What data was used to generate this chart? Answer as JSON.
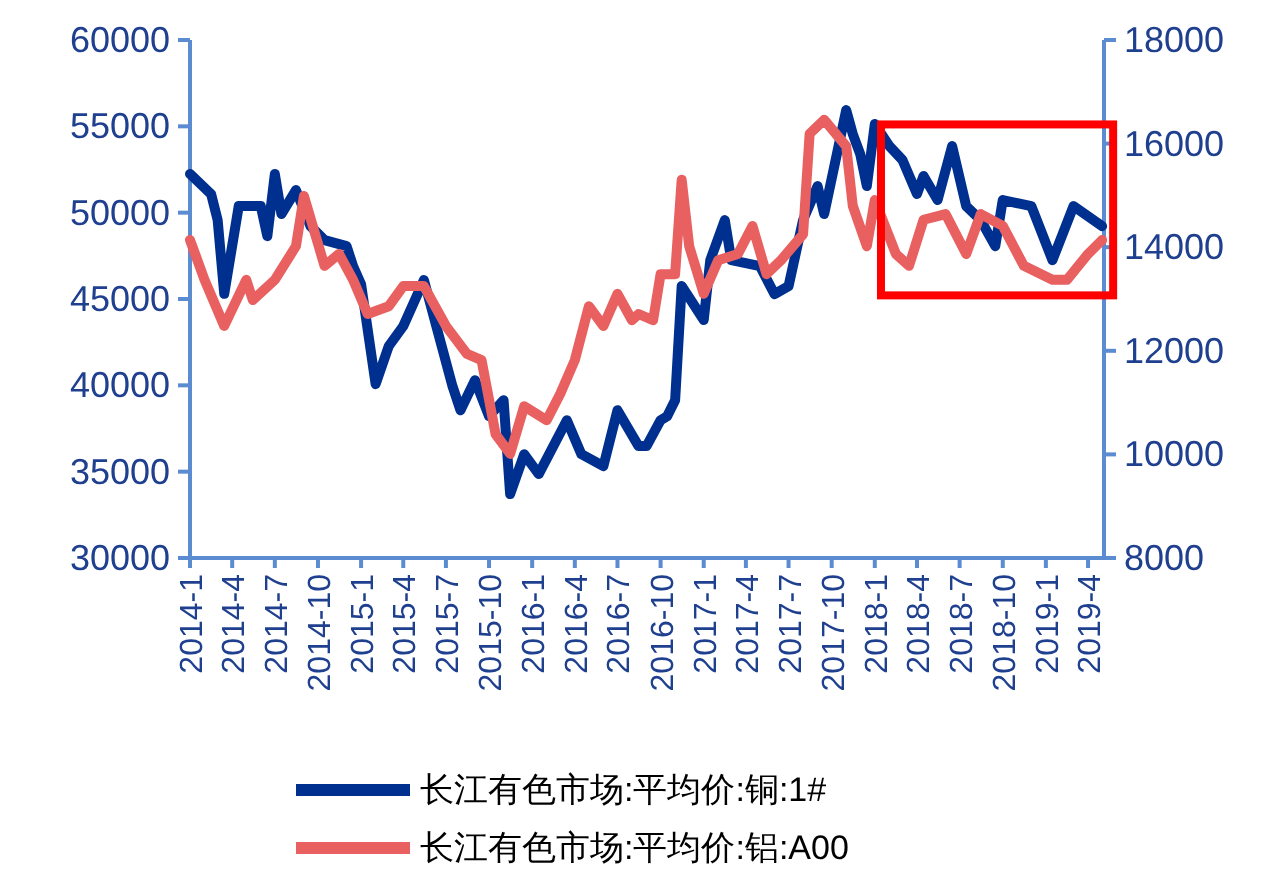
{
  "chart_data": {
    "type": "line",
    "legend": "bottom",
    "grid": false,
    "xlim": [
      "2014-01-01",
      "2019-05-05"
    ],
    "ylim": [
      30000,
      60000
    ],
    "y2lim": [
      8000,
      18000
    ],
    "yticks": [
      30000,
      35000,
      40000,
      45000,
      50000,
      55000,
      60000
    ],
    "y2ticks": [
      8000,
      10000,
      12000,
      14000,
      16000,
      18000
    ],
    "xticks": [
      {
        "value": "2014-01-01",
        "label": "2014-1"
      },
      {
        "value": "2014-04-01",
        "label": "2014-4"
      },
      {
        "value": "2014-07-01",
        "label": "2014-7"
      },
      {
        "value": "2014-10-01",
        "label": "2014-10"
      },
      {
        "value": "2015-01-01",
        "label": "2015-1"
      },
      {
        "value": "2015-04-01",
        "label": "2015-4"
      },
      {
        "value": "2015-07-01",
        "label": "2015-7"
      },
      {
        "value": "2015-10-01",
        "label": "2015-10"
      },
      {
        "value": "2016-01-01",
        "label": "2016-1"
      },
      {
        "value": "2016-04-01",
        "label": "2016-4"
      },
      {
        "value": "2016-07-01",
        "label": "2016-7"
      },
      {
        "value": "2016-10-01",
        "label": "2016-10"
      },
      {
        "value": "2017-01-01",
        "label": "2017-1"
      },
      {
        "value": "2017-04-01",
        "label": "2017-4"
      },
      {
        "value": "2017-07-01",
        "label": "2017-7"
      },
      {
        "value": "2017-10-01",
        "label": "2017-10"
      },
      {
        "value": "2018-01-01",
        "label": "2018-1"
      },
      {
        "value": "2018-04-01",
        "label": "2018-4"
      },
      {
        "value": "2018-07-01",
        "label": "2018-7"
      },
      {
        "value": "2018-10-01",
        "label": "2018-10"
      },
      {
        "value": "2019-01-01",
        "label": "2019-1"
      },
      {
        "value": "2019-04-01",
        "label": "2019-4"
      }
    ],
    "series": [
      {
        "name": "长江有色市场:平均价:铜:1#",
        "color": "#00308f",
        "x": [
          "2014-01-01",
          "2014-02-15",
          "2014-03-01",
          "2014-03-15",
          "2014-04-15",
          "2014-06-01",
          "2014-06-15",
          "2014-07-01",
          "2014-07-15",
          "2014-08-15",
          "2014-09-15",
          "2014-10-15",
          "2014-12-01",
          "2014-12-15",
          "2015-01-01",
          "2015-02-01",
          "2015-03-01",
          "2015-04-01",
          "2015-05-15",
          "2015-06-15",
          "2015-07-15",
          "2015-08-01",
          "2015-09-01",
          "2015-10-01",
          "2015-11-01",
          "2015-11-15",
          "2015-12-15",
          "2016-01-15",
          "2016-03-15",
          "2016-04-15",
          "2016-06-01",
          "2016-07-01",
          "2016-08-15",
          "2016-09-01",
          "2016-10-01",
          "2016-10-15",
          "2016-11-01",
          "2016-11-15",
          "2017-01-01",
          "2017-01-15",
          "2017-02-15",
          "2017-03-01",
          "2017-05-01",
          "2017-06-01",
          "2017-07-01",
          "2017-08-01",
          "2017-09-01",
          "2017-09-15",
          "2017-11-01",
          "2017-11-15",
          "2017-12-01",
          "2017-12-15",
          "2018-01-01",
          "2018-02-01",
          "2018-03-01",
          "2018-04-01",
          "2018-04-15",
          "2018-05-15",
          "2018-06-15",
          "2018-07-15",
          "2018-08-15",
          "2018-09-15",
          "2018-10-01",
          "2018-12-01",
          "2019-01-15",
          "2019-03-01",
          "2019-05-01"
        ],
        "values": [
          52240,
          51080,
          49570,
          45300,
          50380,
          50380,
          48640,
          52240,
          49920,
          51310,
          49220,
          48410,
          48060,
          46900,
          45860,
          40070,
          42270,
          43430,
          46100,
          42970,
          39950,
          38560,
          40300,
          38210,
          39140,
          33700,
          36010,
          34860,
          37980,
          36010,
          35320,
          38560,
          36480,
          36480,
          37980,
          38210,
          39140,
          45750,
          43780,
          47250,
          49570,
          47250,
          46900,
          45280,
          45750,
          49570,
          51540,
          49920,
          55940,
          54560,
          53390,
          51540,
          55130,
          53860,
          53050,
          51080,
          52120,
          50730,
          53860,
          50380,
          49570,
          48060,
          50730,
          50380,
          47250,
          50380,
          49220
        ]
      },
      {
        "name": "长江有色市场:平均价:铝:A00",
        "color": "#e86060",
        "axis": "y2",
        "x": [
          "2014-01-01",
          "2014-02-01",
          "2014-03-15",
          "2014-05-01",
          "2014-05-15",
          "2014-07-01",
          "2014-08-15",
          "2014-09-01",
          "2014-10-15",
          "2014-11-15",
          "2014-12-15",
          "2015-01-15",
          "2015-03-01",
          "2015-04-01",
          "2015-05-15",
          "2015-07-01",
          "2015-08-15",
          "2015-09-15",
          "2015-10-15",
          "2015-11-15",
          "2015-12-15",
          "2016-02-01",
          "2016-03-01",
          "2016-04-01",
          "2016-05-01",
          "2016-06-01",
          "2016-07-01",
          "2016-08-01",
          "2016-08-15",
          "2016-09-15",
          "2016-10-01",
          "2016-11-01",
          "2016-11-15",
          "2016-12-01",
          "2017-01-01",
          "2017-02-01",
          "2017-03-15",
          "2017-04-15",
          "2017-05-15",
          "2017-06-15",
          "2017-08-01",
          "2017-08-15",
          "2017-09-15",
          "2017-11-01",
          "2017-11-15",
          "2017-12-15",
          "2018-01-01",
          "2018-02-15",
          "2018-03-15",
          "2018-04-15",
          "2018-06-01",
          "2018-07-15",
          "2018-08-15",
          "2018-10-01",
          "2018-11-15",
          "2019-01-15",
          "2019-02-15",
          "2019-04-01",
          "2019-05-01"
        ],
        "values": [
          14140,
          13370,
          12480,
          13370,
          12980,
          13370,
          14020,
          14990,
          13640,
          13870,
          13370,
          12710,
          12860,
          13250,
          13250,
          12480,
          11940,
          11820,
          10390,
          10010,
          10930,
          10660,
          11170,
          11820,
          12860,
          12480,
          13100,
          12590,
          12710,
          12590,
          13480,
          13480,
          15300,
          14020,
          13100,
          13750,
          13870,
          14410,
          13480,
          13750,
          14250,
          16190,
          16460,
          15950,
          14800,
          14020,
          14910,
          13870,
          13640,
          14530,
          14640,
          13870,
          14640,
          14410,
          13640,
          13370,
          13370,
          13870,
          14140
        ]
      }
    ]
  }
}
